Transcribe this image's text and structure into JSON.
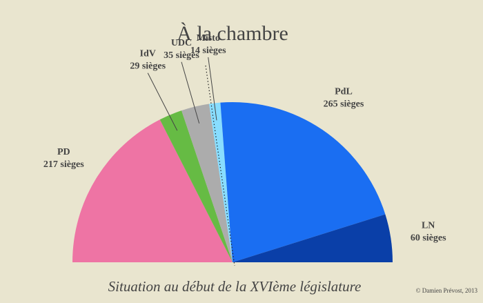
{
  "chart_data": {
    "type": "semicircle",
    "title": "À la chambre",
    "subtitle": "Situation au début de la XVIème législature",
    "credit": "© Damien Prévost, 2013",
    "categories": [
      "PD",
      "IdV",
      "UDC",
      "Misto",
      "PdL",
      "LN"
    ],
    "values": [
      217,
      29,
      35,
      14,
      265,
      60
    ],
    "value_labels": [
      "217 sièges",
      "29 sièges",
      "35 sièges",
      "14 sièges",
      "265 sièges",
      "60 sièges"
    ],
    "colors": [
      "#ee74a4",
      "#66bb44",
      "#acacac",
      "#88ddff",
      "#1a6ef2",
      "#0a3fa8"
    ]
  }
}
